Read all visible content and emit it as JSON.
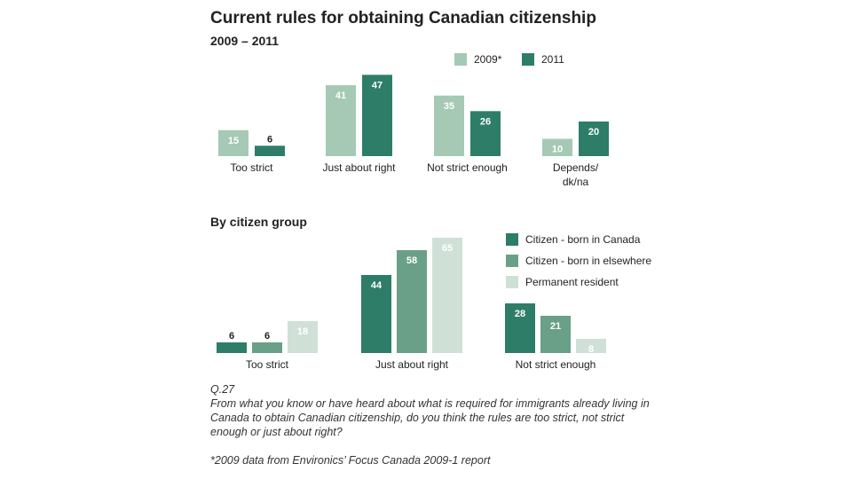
{
  "title": "Current rules for obtaining Canadian citizenship",
  "subtitle": "2009 – 2011",
  "section_title": "By citizen group",
  "question": {
    "code": "Q.27",
    "text": "From what you know or have heard about what is required for immigrants already living in Canada to obtain Canadian citizenship, do you think the rules are too strict, not strict enough or just about right?"
  },
  "footnote": "*2009 data from Environics’ Focus Canada 2009-1 report",
  "chart_data": [
    {
      "type": "bar",
      "title": "Current rules for obtaining Canadian citizenship",
      "subtitle": "2009 – 2011",
      "categories": [
        "Too strict",
        "Just about right",
        "Not strict enough",
        "Depends/ dk/na"
      ],
      "series": [
        {
          "name": "2009*",
          "values": [
            15,
            41,
            35,
            10
          ],
          "color": "#a5c9b4"
        },
        {
          "name": "2011",
          "values": [
            6,
            47,
            26,
            20
          ],
          "color": "#2e7d68"
        }
      ],
      "ylim": [
        0,
        50
      ],
      "legend": "top-right",
      "grid": false
    },
    {
      "type": "bar",
      "title": "By citizen group",
      "categories": [
        "Too strict",
        "Just about right",
        "Not strict enough"
      ],
      "series": [
        {
          "name": "Citizen - born in Canada",
          "values": [
            6,
            44,
            28
          ],
          "color": "#2e7d68"
        },
        {
          "name": "Citizen - born in elsewhere",
          "values": [
            6,
            58,
            21
          ],
          "color": "#6aa088"
        },
        {
          "name": "Permanent resident",
          "values": [
            18,
            65,
            8
          ],
          "color": "#cfe1d6"
        }
      ],
      "ylim": [
        0,
        65
      ],
      "legend": "right",
      "grid": false
    }
  ]
}
